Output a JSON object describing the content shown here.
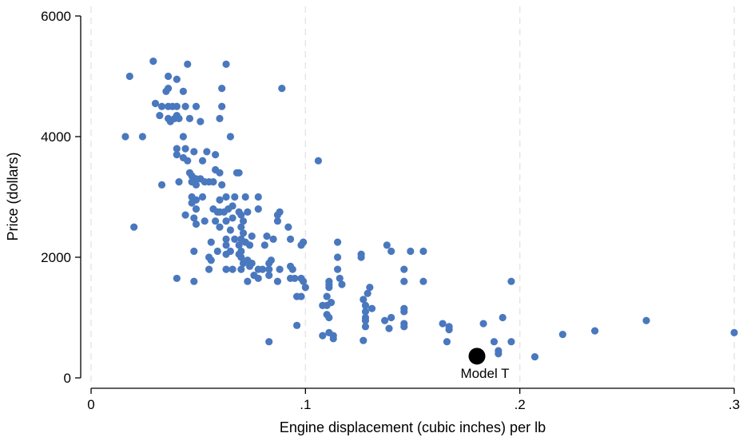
{
  "chart_data": {
    "type": "scatter",
    "title": "",
    "xlabel": "Engine displacement (cubic inches) per lb",
    "ylabel": "Price (dollars)",
    "xlim": [
      0,
      0.3
    ],
    "ylim": [
      0,
      6000
    ],
    "x_ticks": [
      0,
      0.1,
      0.2,
      0.3
    ],
    "x_tick_labels": [
      "0",
      ".1",
      ".2",
      ".3"
    ],
    "y_ticks": [
      0,
      2000,
      4000,
      6000
    ],
    "y_tick_labels": [
      "0",
      "2000",
      "4000",
      "6000"
    ],
    "grid": {
      "vertical_dashed": true,
      "horizontal": false
    },
    "colors": {
      "points": "#4a78be",
      "highlight": "#000000",
      "grid": "#e6e6e6"
    },
    "series": [
      {
        "values": [
          [
            0.018,
            5000
          ],
          [
            0.029,
            5250
          ],
          [
            0.045,
            5200
          ],
          [
            0.063,
            5200
          ],
          [
            0.036,
            5000
          ],
          [
            0.04,
            4950
          ],
          [
            0.061,
            4800
          ],
          [
            0.089,
            4800
          ],
          [
            0.03,
            4550
          ],
          [
            0.033,
            4500
          ],
          [
            0.036,
            4500
          ],
          [
            0.038,
            4500
          ],
          [
            0.04,
            4500
          ],
          [
            0.044,
            4500
          ],
          [
            0.049,
            4500
          ],
          [
            0.061,
            4500
          ],
          [
            0.035,
            4750
          ],
          [
            0.036,
            4800
          ],
          [
            0.043,
            4750
          ],
          [
            0.032,
            4350
          ],
          [
            0.036,
            4300
          ],
          [
            0.037,
            4250
          ],
          [
            0.039,
            4300
          ],
          [
            0.041,
            4300
          ],
          [
            0.04,
            4350
          ],
          [
            0.046,
            4300
          ],
          [
            0.051,
            4250
          ],
          [
            0.06,
            4300
          ],
          [
            0.016,
            4000
          ],
          [
            0.024,
            4000
          ],
          [
            0.043,
            4000
          ],
          [
            0.065,
            4000
          ],
          [
            0.04,
            3800
          ],
          [
            0.044,
            3800
          ],
          [
            0.048,
            3750
          ],
          [
            0.054,
            3750
          ],
          [
            0.04,
            3700
          ],
          [
            0.043,
            3650
          ],
          [
            0.045,
            3600
          ],
          [
            0.052,
            3600
          ],
          [
            0.106,
            3600
          ],
          [
            0.058,
            3700
          ],
          [
            0.046,
            3400
          ],
          [
            0.047,
            3350
          ],
          [
            0.049,
            3300
          ],
          [
            0.051,
            3300
          ],
          [
            0.053,
            3250
          ],
          [
            0.055,
            3250
          ],
          [
            0.057,
            3250
          ],
          [
            0.058,
            3450
          ],
          [
            0.06,
            3400
          ],
          [
            0.068,
            3400
          ],
          [
            0.069,
            3400
          ],
          [
            0.033,
            3200
          ],
          [
            0.041,
            3250
          ],
          [
            0.047,
            3250
          ],
          [
            0.049,
            3200
          ],
          [
            0.061,
            3200
          ],
          [
            0.052,
            3000
          ],
          [
            0.047,
            3000
          ],
          [
            0.047,
            2900
          ],
          [
            0.049,
            2950
          ],
          [
            0.06,
            2950
          ],
          [
            0.063,
            3000
          ],
          [
            0.067,
            3000
          ],
          [
            0.072,
            3000
          ],
          [
            0.078,
            3000
          ],
          [
            0.049,
            2800
          ],
          [
            0.057,
            2800
          ],
          [
            0.059,
            2750
          ],
          [
            0.06,
            2750
          ],
          [
            0.062,
            2750
          ],
          [
            0.064,
            2800
          ],
          [
            0.066,
            2850
          ],
          [
            0.069,
            2750
          ],
          [
            0.07,
            2700
          ],
          [
            0.073,
            2750
          ],
          [
            0.078,
            2800
          ],
          [
            0.044,
            2700
          ],
          [
            0.048,
            2650
          ],
          [
            0.053,
            2600
          ],
          [
            0.058,
            2600
          ],
          [
            0.063,
            2600
          ],
          [
            0.066,
            2650
          ],
          [
            0.071,
            2600
          ],
          [
            0.087,
            2700
          ],
          [
            0.088,
            2750
          ],
          [
            0.087,
            2600
          ],
          [
            0.02,
            2500
          ],
          [
            0.049,
            2550
          ],
          [
            0.06,
            2500
          ],
          [
            0.065,
            2450
          ],
          [
            0.07,
            2500
          ],
          [
            0.071,
            2400
          ],
          [
            0.075,
            2350
          ],
          [
            0.082,
            2350
          ],
          [
            0.092,
            2500
          ],
          [
            0.063,
            2300
          ],
          [
            0.067,
            2300
          ],
          [
            0.07,
            2300
          ],
          [
            0.072,
            2250
          ],
          [
            0.074,
            2200
          ],
          [
            0.081,
            2200
          ],
          [
            0.085,
            2300
          ],
          [
            0.093,
            2300
          ],
          [
            0.098,
            2200
          ],
          [
            0.099,
            2250
          ],
          [
            0.056,
            2250
          ],
          [
            0.059,
            2100
          ],
          [
            0.063,
            2200
          ],
          [
            0.065,
            2100
          ],
          [
            0.069,
            2200
          ],
          [
            0.07,
            2100
          ],
          [
            0.069,
            2050
          ],
          [
            0.07,
            2000
          ],
          [
            0.073,
            1950
          ],
          [
            0.075,
            1900
          ],
          [
            0.083,
            1900
          ],
          [
            0.084,
            1950
          ],
          [
            0.063,
            2050
          ],
          [
            0.055,
            2000
          ],
          [
            0.048,
            2100
          ],
          [
            0.056,
            1950
          ],
          [
            0.071,
            1900
          ],
          [
            0.08,
            1800
          ],
          [
            0.083,
            1800
          ],
          [
            0.088,
            1800
          ],
          [
            0.093,
            1850
          ],
          [
            0.094,
            1800
          ],
          [
            0.055,
            1800
          ],
          [
            0.063,
            1800
          ],
          [
            0.066,
            1800
          ],
          [
            0.074,
            1850
          ],
          [
            0.078,
            1800
          ],
          [
            0.076,
            1700
          ],
          [
            0.078,
            1650
          ],
          [
            0.073,
            1600
          ],
          [
            0.07,
            1800
          ],
          [
            0.083,
            1700
          ],
          [
            0.087,
            1600
          ],
          [
            0.093,
            1650
          ],
          [
            0.095,
            1650
          ],
          [
            0.099,
            1600
          ],
          [
            0.098,
            1650
          ],
          [
            0.1,
            1500
          ],
          [
            0.04,
            1650
          ],
          [
            0.048,
            1600
          ],
          [
            0.111,
            1600
          ],
          [
            0.111,
            1550
          ],
          [
            0.111,
            1500
          ],
          [
            0.115,
            2250
          ],
          [
            0.115,
            2000
          ],
          [
            0.115,
            1800
          ],
          [
            0.116,
            1650
          ],
          [
            0.117,
            1550
          ],
          [
            0.126,
            2050
          ],
          [
            0.126,
            2000
          ],
          [
            0.13,
            1500
          ],
          [
            0.129,
            1400
          ],
          [
            0.127,
            1300
          ],
          [
            0.138,
            2200
          ],
          [
            0.14,
            2100
          ],
          [
            0.149,
            2100
          ],
          [
            0.155,
            2100
          ],
          [
            0.146,
            1800
          ],
          [
            0.146,
            1600
          ],
          [
            0.155,
            1600
          ],
          [
            0.196,
            1600
          ],
          [
            0.096,
            1350
          ],
          [
            0.098,
            1350
          ],
          [
            0.108,
            1200
          ],
          [
            0.11,
            1200
          ],
          [
            0.11,
            1350
          ],
          [
            0.112,
            1250
          ],
          [
            0.128,
            1200
          ],
          [
            0.128,
            1100
          ],
          [
            0.131,
            1150
          ],
          [
            0.11,
            1050
          ],
          [
            0.111,
            1000
          ],
          [
            0.128,
            1000
          ],
          [
            0.128,
            950
          ],
          [
            0.128,
            850
          ],
          [
            0.137,
            950
          ],
          [
            0.14,
            1000
          ],
          [
            0.146,
            1100
          ],
          [
            0.146,
            1150
          ],
          [
            0.146,
            900
          ],
          [
            0.146,
            850
          ],
          [
            0.096,
            870
          ],
          [
            0.111,
            750
          ],
          [
            0.108,
            700
          ],
          [
            0.113,
            700
          ],
          [
            0.113,
            650
          ],
          [
            0.127,
            620
          ],
          [
            0.139,
            820
          ],
          [
            0.083,
            600
          ],
          [
            0.164,
            900
          ],
          [
            0.167,
            850
          ],
          [
            0.167,
            800
          ],
          [
            0.183,
            900
          ],
          [
            0.192,
            1000
          ],
          [
            0.166,
            600
          ],
          [
            0.188,
            600
          ],
          [
            0.196,
            600
          ],
          [
            0.19,
            450
          ],
          [
            0.19,
            400
          ],
          [
            0.207,
            350
          ],
          [
            0.22,
            720
          ],
          [
            0.235,
            780
          ],
          [
            0.259,
            950
          ],
          [
            0.3,
            750
          ]
        ]
      }
    ],
    "highlight": {
      "label": "Model T",
      "x": 0.18,
      "y": 360
    }
  }
}
